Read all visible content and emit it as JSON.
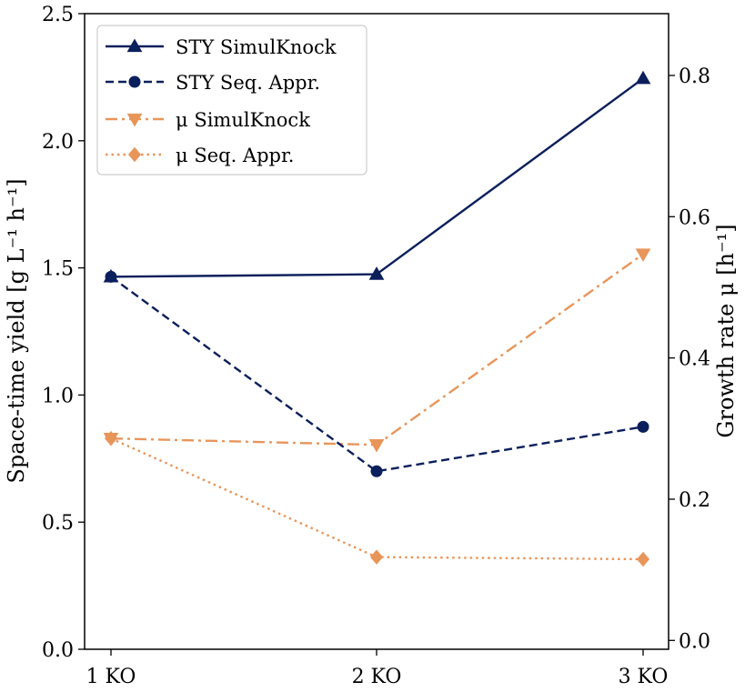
{
  "chart_data": {
    "type": "line",
    "categories": [
      "1 KO",
      "2 KO",
      "3 KO"
    ],
    "y_left": {
      "label": "Space-time yield [g L⁻¹ h⁻¹]",
      "ylim": [
        0,
        2.5
      ],
      "ticks": [
        "0.0",
        "0.5",
        "1.0",
        "1.5",
        "2.0",
        "2.5"
      ]
    },
    "y_right": {
      "label": "Growth rate μ [h⁻¹]",
      "ylim": [
        -0.0125,
        0.8875
      ],
      "ticks": [
        "0.0",
        "0.2",
        "0.4",
        "0.6",
        "0.8"
      ]
    },
    "series": [
      {
        "name": "STY SimulKnock",
        "axis": "left",
        "values": [
          1.465,
          1.475,
          2.245
        ],
        "color": "#0b1f5c",
        "dash": "solid",
        "marker": "triangle-up"
      },
      {
        "name": "STY Seq. Appr.",
        "axis": "left",
        "values": [
          1.465,
          0.7,
          0.875
        ],
        "color": "#0b1f5c",
        "dash": "dashed",
        "marker": "circle"
      },
      {
        "name": "μ SimulKnock",
        "axis": "right",
        "values": [
          0.286,
          0.277,
          0.547
        ],
        "color": "#e8955a",
        "dash": "dashdot",
        "marker": "triangle-down"
      },
      {
        "name": "μ Seq. Appr.",
        "axis": "right",
        "values": [
          0.286,
          0.118,
          0.115
        ],
        "color": "#e8955a",
        "dash": "dotted",
        "marker": "diamond"
      }
    ],
    "legend": {
      "location": "upper-left"
    }
  }
}
